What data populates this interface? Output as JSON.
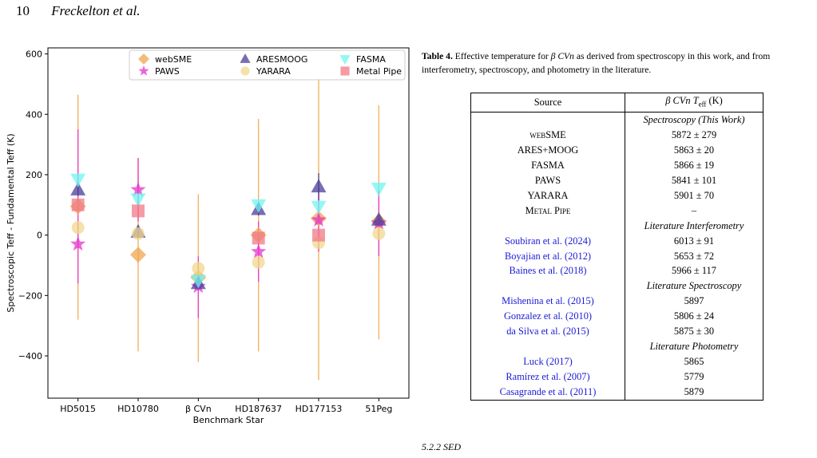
{
  "page_header": {
    "page_number": "10",
    "authors": "Freckelton et al."
  },
  "chart_data": {
    "type": "scatter",
    "title": "",
    "xlabel": "Benchmark Star",
    "ylabel": "Spectroscopic Teff - Fundamental Teff (K)",
    "categories": [
      "HD5015",
      "HD10780",
      "β CVn",
      "HD187637",
      "HD177153",
      "51Peg"
    ],
    "yticks": [
      -400,
      -200,
      0,
      200,
      400,
      600
    ],
    "ylim": [
      -540,
      620
    ],
    "grid": false,
    "legend_position": "top-right",
    "series": [
      {
        "name": "webSME",
        "color": "#f0a64d",
        "marker": "diamond",
        "values": [
          95,
          -65,
          -140,
          0,
          55,
          45
        ],
        "err_low": [
          -280,
          -385,
          -420,
          -385,
          -480,
          -345
        ],
        "err_high": [
          465,
          255,
          135,
          385,
          520,
          430
        ]
      },
      {
        "name": "PAWS",
        "color": "#e633cc",
        "marker": "star",
        "values": [
          -30,
          150,
          -170,
          -55,
          50,
          40
        ],
        "err_low": [
          -160,
          45,
          -275,
          -155,
          -55,
          -70
        ],
        "err_high": [
          350,
          255,
          -70,
          45,
          155,
          150
        ]
      },
      {
        "name": "ARESMOOG",
        "color": "#4a3d99",
        "marker": "triangle-up",
        "values": [
          150,
          10,
          -160,
          85,
          160,
          50
        ],
        "err_low": [
          130,
          -10,
          -180,
          65,
          115,
          30
        ],
        "err_high": [
          170,
          30,
          -140,
          105,
          205,
          70
        ]
      },
      {
        "name": "YARARA",
        "color": "#f2d88c",
        "marker": "circle",
        "values": [
          25,
          5,
          -110,
          -90,
          -25,
          5
        ],
        "err_low": [],
        "err_high": []
      },
      {
        "name": "FASMA",
        "color": "#6ff5f0",
        "marker": "triangle-down",
        "values": [
          185,
          120,
          -150,
          100,
          95,
          155
        ],
        "err_low": [],
        "err_high": []
      },
      {
        "name": "Metal Pipe",
        "color": "#f07a88",
        "marker": "square",
        "values": [
          100,
          80,
          null,
          -10,
          0,
          null
        ],
        "err_low": [],
        "err_high": []
      }
    ]
  },
  "caption": {
    "label": "Table 4.",
    "text_a": "Effective temperature for",
    "beta_cvn": "β CVn",
    "text_b": "as derived from spectroscopy in this work, and from interferometry, spectroscopy, and photometry in the literature."
  },
  "table": {
    "col_source": "Source",
    "col_value_prefix": "β CVn",
    "col_value_T": "T",
    "col_value_sub": "eff",
    "col_value_suffix": "(K)",
    "rows": [
      {
        "kind": "section",
        "text": "Spectroscopy (This Work)"
      },
      {
        "kind": "row",
        "source_sc": "web",
        "source": "SME",
        "value": "5872 ± 279"
      },
      {
        "kind": "row",
        "source": "ARES+MOOG",
        "value": "5863 ± 20"
      },
      {
        "kind": "row",
        "source": "FASMA",
        "value": "5866 ± 19"
      },
      {
        "kind": "row",
        "source": "PAWS",
        "value": "5841 ± 101"
      },
      {
        "kind": "row",
        "source": "YARARA",
        "value": "5901 ± 70"
      },
      {
        "kind": "row",
        "source_smallcaps": "Metal Pipe",
        "value": "–"
      },
      {
        "kind": "section",
        "text": "Literature Interferometry"
      },
      {
        "kind": "cite",
        "author": "Soubiran et al. (",
        "year": "2024",
        "close": ")",
        "value": "6013 ± 91"
      },
      {
        "kind": "cite",
        "author": "Boyajian et al. (",
        "year": "2012",
        "close": ")",
        "value": "5653 ± 72"
      },
      {
        "kind": "cite",
        "author": "Baines et al. (",
        "year": "2018",
        "close": ")",
        "value": "5966 ± 117"
      },
      {
        "kind": "section",
        "text": "Literature Spectroscopy"
      },
      {
        "kind": "cite",
        "author": "Mishenina et al. (",
        "year": "2015",
        "close": ")",
        "value": "5897"
      },
      {
        "kind": "cite",
        "author": "Gonzalez et al. (",
        "year": "2010",
        "close": ")",
        "value": "5806 ± 24"
      },
      {
        "kind": "cite",
        "author": "da Silva et al. (",
        "year": "2015",
        "close": ")",
        "value": "5875 ± 30"
      },
      {
        "kind": "section",
        "text": "Literature Photometry"
      },
      {
        "kind": "cite",
        "author": "Luck (",
        "year": "2017",
        "close": ")",
        "value": "5865"
      },
      {
        "kind": "cite",
        "author": "Ramírez et al. (",
        "year": "2007",
        "close": ")",
        "value": "5779"
      },
      {
        "kind": "cite",
        "author": "Casagrande et al. (",
        "year": "2011",
        "close": ")",
        "value": "5879"
      }
    ]
  },
  "subsection_heading": "5.2.2 SED"
}
